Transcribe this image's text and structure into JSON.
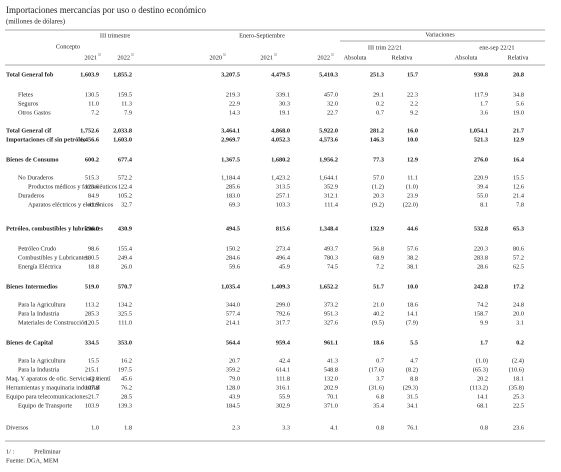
{
  "header": {
    "title": "Importaciones mercancías por uso o destino económico",
    "subtitle": "(millones de dólares)"
  },
  "table": {
    "concept_header": "Concepto",
    "groups": [
      "III trimestre",
      "Enero-Septiembre",
      "Variaciones"
    ],
    "subgroups": [
      "III trim 22/21",
      "ene-sep 22/21"
    ],
    "years": [
      "2021",
      "2022",
      "2020",
      "2021",
      "2022"
    ],
    "note_mark": "1/",
    "measure_headers": [
      "Absoluta",
      "Relativa",
      "Absoluta",
      "Relativa"
    ],
    "rows": [
      [
        "Total General fob",
        "1,603.9",
        "1,855.2",
        "3,207.5",
        "4,479.5",
        "5,410.3",
        "251.3",
        "15.7",
        "930.8",
        "20.8"
      ],
      [
        "Fletes",
        "130.5",
        "159.5",
        "219.3",
        "339.1",
        "457.0",
        "29.1",
        "22.3",
        "117.9",
        "34.8"
      ],
      [
        "Seguros",
        "11.0",
        "11.3",
        "22.9",
        "30.3",
        "32.0",
        "0.2",
        "2.2",
        "1.7",
        "5.6"
      ],
      [
        "Otros Gastos",
        "7.2",
        "7.9",
        "14.3",
        "19.1",
        "22.7",
        "0.7",
        "9.2",
        "3.6",
        "19.0"
      ],
      [
        "Total General cif",
        "1,752.6",
        "2,033.8",
        "3,464.1",
        "4,868.0",
        "5,922.0",
        "281.2",
        "16.0",
        "1,054.1",
        "21.7"
      ],
      [
        "Importaciones cif sin petróleo",
        "1,456.6",
        "1,603.0",
        "2,969.7",
        "4,052.3",
        "4,573.6",
        "146.3",
        "10.0",
        "521.3",
        "12.9"
      ],
      [
        "Bienes de Consumo",
        "600.2",
        "677.4",
        "1,367.5",
        "1,680.2",
        "1,956.2",
        "77.3",
        "12.9",
        "276.0",
        "16.4"
      ],
      [
        "No Duraderos",
        "515.3",
        "572.2",
        "1,184.4",
        "1,423.2",
        "1,644.1",
        "57.0",
        "11.1",
        "220.9",
        "15.5"
      ],
      [
        "Productos médicos y farmacéuticos",
        "123.6",
        "122.4",
        "285.6",
        "313.5",
        "352.9",
        "(1.2)",
        "(1.0)",
        "39.4",
        "12.6"
      ],
      [
        "Duraderos",
        "84.9",
        "105.2",
        "183.0",
        "257.1",
        "312.1",
        "20.3",
        "23.9",
        "55.0",
        "21.4"
      ],
      [
        "Aparatos eléctricos y electrónicos",
        "41.9",
        "32.7",
        "69.3",
        "103.3",
        "111.4",
        "(9.2)",
        "(22.0)",
        "8.1",
        "7.8"
      ],
      [
        "Petróleo, combustibles y lubricantes",
        "296.0",
        "430.9",
        "494.5",
        "815.6",
        "1,348.4",
        "132.9",
        "44.6",
        "532.8",
        "65.3"
      ],
      [
        "Petróleo Crudo",
        "98.6",
        "155.4",
        "150.2",
        "273.4",
        "493.7",
        "56.8",
        "57.6",
        "220.3",
        "80.6"
      ],
      [
        "Combustibles y Lubricantes",
        "180.5",
        "249.4",
        "284.6",
        "496.4",
        "780.3",
        "68.9",
        "38.2",
        "283.8",
        "57.2"
      ],
      [
        "Energía Eléctrica",
        "18.8",
        "26.0",
        "59.6",
        "45.9",
        "74.5",
        "7.2",
        "38.1",
        "28.6",
        "62.5"
      ],
      [
        "Bienes Intermedios",
        "519.0",
        "570.7",
        "1,035.4",
        "1,409.3",
        "1,652.2",
        "51.7",
        "10.0",
        "242.8",
        "17.2"
      ],
      [
        "Para la Agricultura",
        "113.2",
        "134.2",
        "344.0",
        "299.0",
        "373.2",
        "21.0",
        "18.6",
        "74.2",
        "24.8"
      ],
      [
        "Para la Industria",
        "285.3",
        "325.5",
        "577.4",
        "792.6",
        "951.3",
        "40.2",
        "14.1",
        "158.7",
        "20.0"
      ],
      [
        "Materiales de Construcción",
        "120.5",
        "111.0",
        "214.1",
        "317.7",
        "327.6",
        "(9.5)",
        "(7.9)",
        "9.9",
        "3.1"
      ],
      [
        "Bienes de Capital",
        "334.5",
        "353.0",
        "564.4",
        "959.4",
        "961.1",
        "18.6",
        "5.5",
        "1.7",
        "0.2"
      ],
      [
        "Para la Agricultura",
        "15.5",
        "16.2",
        "20.7",
        "42.4",
        "41.3",
        "0.7",
        "4.7",
        "(1.0)",
        "(2.4)"
      ],
      [
        "Para la Industria",
        "215.1",
        "197.5",
        "359.2",
        "614.1",
        "548.8",
        "(17.6)",
        "(8.2)",
        "(65.3)",
        "(10.6)"
      ],
      [
        "Maq. Y aparatos de ofic. Servicio y cientí",
        "42.0",
        "45.6",
        "79.0",
        "111.8",
        "132.0",
        "3.7",
        "8.8",
        "20.2",
        "18.1"
      ],
      [
        "Herramientas y maquinaria industrial",
        "107.8",
        "76.2",
        "128.0",
        "316.1",
        "202.9",
        "(31.6)",
        "(29.3)",
        "(113.2)",
        "(35.8)"
      ],
      [
        "Equipo para telecomunicaciones",
        "21.7",
        "28.5",
        "43.9",
        "55.9",
        "70.1",
        "6.8",
        "31.5",
        "14.1",
        "25.3"
      ],
      [
        "Equipo de Transporte",
        "103.9",
        "139.3",
        "184.5",
        "302.9",
        "371.0",
        "35.4",
        "34.1",
        "68.1",
        "22.5"
      ],
      [
        "Diversos",
        "1.0",
        "1.8",
        "2.3",
        "3.3",
        "4.1",
        "0.8",
        "76.1",
        "0.8",
        "23.6"
      ]
    ]
  },
  "footer": {
    "note_mark": "1/ :",
    "note": "Preliminar",
    "source": "Fuente: DGA, MEM"
  }
}
